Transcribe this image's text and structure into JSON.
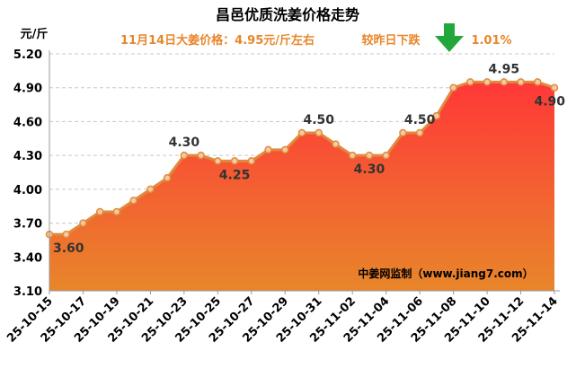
{
  "chart_data": {
    "type": "area",
    "title": "昌邑优质洗姜价格走势",
    "subtitle_left": "11月14日大姜价格：4.95元/斤左右",
    "subtitle_right_label": "较昨日下跌",
    "subtitle_right_value": "1.01%",
    "ylabel": "元/斤",
    "source": "中姜网监制（www.jiang7.com）",
    "ylim": [
      3.1,
      5.2
    ],
    "yticks": [
      "3.10",
      "3.40",
      "3.70",
      "4.00",
      "4.30",
      "4.60",
      "4.90",
      "5.20"
    ],
    "ytick_values": [
      3.1,
      3.4,
      3.7,
      4.0,
      4.3,
      4.6,
      4.9,
      5.2
    ],
    "xticks": [
      "25-10-15",
      "25-10-17",
      "25-10-19",
      "25-10-21",
      "25-10-23",
      "25-10-25",
      "25-10-27",
      "25-10-29",
      "25-10-31",
      "25-11-02",
      "25-11-04",
      "25-11-06",
      "25-11-08",
      "25-11-10",
      "25-11-12",
      "25-11-14"
    ],
    "x": [
      "25-10-15",
      "25-10-16",
      "25-10-17",
      "25-10-18",
      "25-10-19",
      "25-10-20",
      "25-10-21",
      "25-10-22",
      "25-10-23",
      "25-10-24",
      "25-10-25",
      "25-10-26",
      "25-10-27",
      "25-10-28",
      "25-10-29",
      "25-10-30",
      "25-10-31",
      "25-11-01",
      "25-11-02",
      "25-11-03",
      "25-11-04",
      "25-11-05",
      "25-11-06",
      "25-11-07",
      "25-11-08",
      "25-11-09",
      "25-11-10",
      "25-11-11",
      "25-11-12",
      "25-11-13",
      "25-11-14"
    ],
    "values": [
      3.6,
      3.6,
      3.7,
      3.8,
      3.8,
      3.9,
      4.0,
      4.1,
      4.3,
      4.3,
      4.25,
      4.25,
      4.25,
      4.35,
      4.35,
      4.5,
      4.5,
      4.4,
      4.3,
      4.3,
      4.3,
      4.5,
      4.5,
      4.65,
      4.9,
      4.95,
      4.95,
      4.95,
      4.95,
      4.95,
      4.9
    ],
    "annotations": [
      {
        "index": 0,
        "text": "3.60",
        "pos": "below"
      },
      {
        "index": 8,
        "text": "4.30",
        "pos": "above"
      },
      {
        "index": 11,
        "text": "4.25",
        "pos": "below"
      },
      {
        "index": 16,
        "text": "4.50",
        "pos": "above"
      },
      {
        "index": 19,
        "text": "4.30",
        "pos": "below"
      },
      {
        "index": 22,
        "text": "4.50",
        "pos": "above"
      },
      {
        "index": 27,
        "text": "4.95",
        "pos": "above"
      },
      {
        "index": 30,
        "text": "4.90",
        "pos": "below"
      }
    ],
    "grid": true,
    "colors": {
      "title": "#000000",
      "subtitle": "#e8862a",
      "line": "#e08a3c",
      "marker_fill": "#f7c9a0",
      "area_top": "#ff3838",
      "area_bottom": "#e8862a",
      "down_arrow": "#22a83a",
      "grid": "#c8c8c8"
    }
  }
}
